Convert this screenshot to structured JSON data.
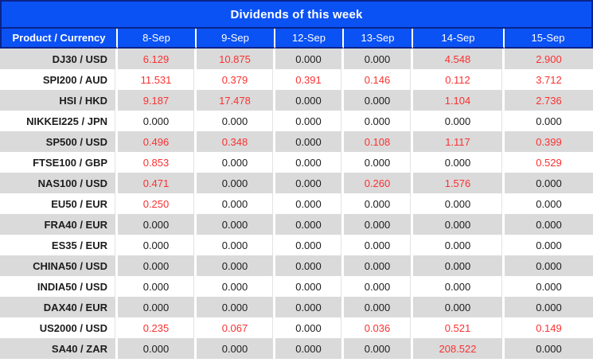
{
  "title": "Dividends of this week",
  "colors": {
    "header_blue": "#0b52f5",
    "header_border_navy": "#0a238c",
    "row_stripe_gray": "#dadada",
    "nonzero_value_red": "#fb3131",
    "zero_value_black": "#1c1c1c",
    "header_text_white": "#ffffff"
  },
  "table": {
    "columns": [
      "Product / Currency",
      "8-Sep",
      "9-Sep",
      "12-Sep",
      "13-Sep",
      "14-Sep",
      "15-Sep"
    ],
    "rows": [
      {
        "product": "DJ30 / USD",
        "values": [
          "6.129",
          "10.875",
          "0.000",
          "0.000",
          "4.548",
          "2.900"
        ]
      },
      {
        "product": "SPI200 / AUD",
        "values": [
          "11.531",
          "0.379",
          "0.391",
          "0.146",
          "0.112",
          "3.712"
        ]
      },
      {
        "product": "HSI / HKD",
        "values": [
          "9.187",
          "17.478",
          "0.000",
          "0.000",
          "1.104",
          "2.736"
        ]
      },
      {
        "product": "NIKKEI225 / JPN",
        "values": [
          "0.000",
          "0.000",
          "0.000",
          "0.000",
          "0.000",
          "0.000"
        ]
      },
      {
        "product": "SP500 / USD",
        "values": [
          "0.496",
          "0.348",
          "0.000",
          "0.108",
          "1.117",
          "0.399"
        ]
      },
      {
        "product": "FTSE100 / GBP",
        "values": [
          "0.853",
          "0.000",
          "0.000",
          "0.000",
          "0.000",
          "0.529"
        ]
      },
      {
        "product": "NAS100 / USD",
        "values": [
          "0.471",
          "0.000",
          "0.000",
          "0.260",
          "1.576",
          "0.000"
        ]
      },
      {
        "product": "EU50 / EUR",
        "values": [
          "0.250",
          "0.000",
          "0.000",
          "0.000",
          "0.000",
          "0.000"
        ]
      },
      {
        "product": "FRA40 / EUR",
        "values": [
          "0.000",
          "0.000",
          "0.000",
          "0.000",
          "0.000",
          "0.000"
        ]
      },
      {
        "product": "ES35 / EUR",
        "values": [
          "0.000",
          "0.000",
          "0.000",
          "0.000",
          "0.000",
          "0.000"
        ]
      },
      {
        "product": "CHINA50 / USD",
        "values": [
          "0.000",
          "0.000",
          "0.000",
          "0.000",
          "0.000",
          "0.000"
        ]
      },
      {
        "product": "INDIA50 / USD",
        "values": [
          "0.000",
          "0.000",
          "0.000",
          "0.000",
          "0.000",
          "0.000"
        ]
      },
      {
        "product": "DAX40 / EUR",
        "values": [
          "0.000",
          "0.000",
          "0.000",
          "0.000",
          "0.000",
          "0.000"
        ]
      },
      {
        "product": "US2000 / USD",
        "values": [
          "0.235",
          "0.067",
          "0.000",
          "0.036",
          "0.521",
          "0.149"
        ]
      },
      {
        "product": "SA40 / ZAR",
        "values": [
          "0.000",
          "0.000",
          "0.000",
          "0.000",
          "208.522",
          "0.000"
        ]
      }
    ]
  }
}
